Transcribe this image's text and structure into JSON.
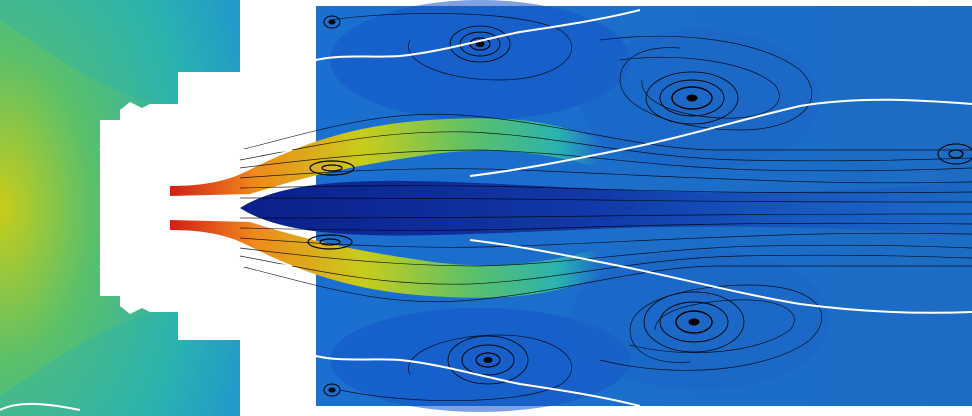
{
  "image": {
    "subject": "cfd-flow-visualization",
    "palette": {
      "deep": "#0b1f8a",
      "low": "#1456c8",
      "mid": "#1f8fd6",
      "teal": "#2bb3b0",
      "green": "#5cc06a",
      "yellow": "#c8cd1a",
      "orange": "#f08a1c",
      "red": "#d21e16",
      "contour": "#ffffff",
      "streamline": "#000000"
    },
    "vortex_count": 8
  }
}
